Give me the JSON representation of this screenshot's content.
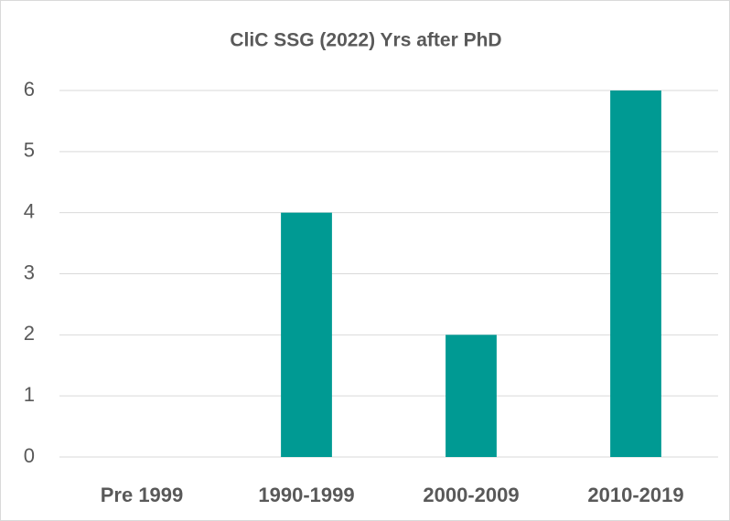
{
  "chart_data": {
    "type": "bar",
    "title": "CliC SSG (2022) Yrs after PhD",
    "categories": [
      "Pre 1999",
      "1990-1999",
      "2000-2009",
      "2010-2019"
    ],
    "values": [
      0,
      4,
      2,
      6
    ],
    "color": "#009a93",
    "ylim": [
      0,
      6
    ],
    "yticks": [
      0,
      1,
      2,
      3,
      4,
      5,
      6
    ],
    "grid": true
  }
}
